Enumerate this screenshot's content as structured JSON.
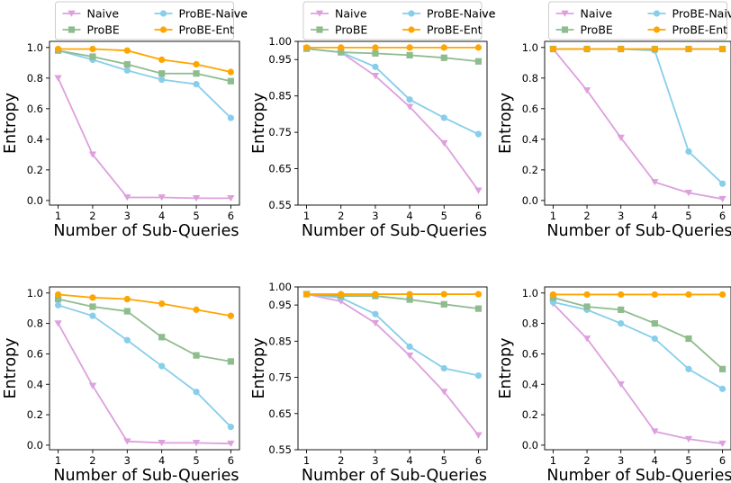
{
  "colors": {
    "Naive": "#DDA0DD",
    "ProBE-Naive": "#87CEEB",
    "ProBE": "#8FBC8F",
    "ProBE-Ent": "#FFA500"
  },
  "chart_data": [
    {
      "type": "line",
      "xlabel": "Number of Sub-Queries",
      "ylabel": "Entropy",
      "x": [
        1,
        2,
        3,
        4,
        5,
        6
      ],
      "xlim": [
        0.75,
        6.25
      ],
      "ylim": [
        -0.03,
        1.04
      ],
      "yticks": [
        0.0,
        0.2,
        0.4,
        0.6,
        0.8,
        1.0
      ],
      "ytick_labels": [
        "0.0",
        "0.2",
        "0.4",
        "0.6",
        "0.8",
        "1.0"
      ],
      "legend": "top-center",
      "series": [
        {
          "name": "Naive",
          "marker": "triangle-down",
          "values": [
            0.8,
            0.3,
            0.02,
            0.02,
            0.015,
            0.015
          ]
        },
        {
          "name": "ProBE-Naive",
          "marker": "circle",
          "values": [
            0.98,
            0.92,
            0.85,
            0.79,
            0.76,
            0.54
          ]
        },
        {
          "name": "ProBE",
          "marker": "square",
          "values": [
            0.98,
            0.94,
            0.89,
            0.83,
            0.83,
            0.78
          ]
        },
        {
          "name": "ProBE-Ent",
          "marker": "circle",
          "values": [
            0.99,
            0.99,
            0.98,
            0.92,
            0.89,
            0.84
          ]
        }
      ]
    },
    {
      "type": "line",
      "xlabel": "Number of Sub-Queries",
      "ylabel": "Entropy",
      "x": [
        1,
        2,
        3,
        4,
        5,
        6
      ],
      "xlim": [
        0.75,
        6.25
      ],
      "ylim": [
        0.55,
        1.0
      ],
      "yticks": [
        0.55,
        0.65,
        0.75,
        0.85,
        0.95,
        1.0
      ],
      "ytick_labels": [
        "0.55",
        "0.65",
        "0.75",
        "0.85",
        "0.95",
        "1.00"
      ],
      "legend": "top-center",
      "series": [
        {
          "name": "Naive",
          "marker": "triangle-down",
          "values": [
            0.98,
            0.97,
            0.905,
            0.82,
            0.72,
            0.59
          ]
        },
        {
          "name": "ProBE-Naive",
          "marker": "circle",
          "values": [
            0.98,
            0.97,
            0.93,
            0.84,
            0.79,
            0.745
          ]
        },
        {
          "name": "ProBE",
          "marker": "square",
          "values": [
            0.98,
            0.97,
            0.967,
            0.962,
            0.955,
            0.945
          ]
        },
        {
          "name": "ProBE-Ent",
          "marker": "circle",
          "values": [
            0.983,
            0.983,
            0.983,
            0.983,
            0.983,
            0.983
          ]
        }
      ]
    },
    {
      "type": "line",
      "xlabel": "Number of Sub-Queries",
      "ylabel": "Entropy",
      "x": [
        1,
        2,
        3,
        4,
        5,
        6
      ],
      "xlim": [
        0.75,
        6.25
      ],
      "ylim": [
        -0.03,
        1.04
      ],
      "yticks": [
        0.0,
        0.2,
        0.4,
        0.6,
        0.8,
        1.0
      ],
      "ytick_labels": [
        "0.0",
        "0.2",
        "0.4",
        "0.6",
        "0.8",
        "1.0"
      ],
      "legend": "top-center",
      "series": [
        {
          "name": "Naive",
          "marker": "triangle-down",
          "values": [
            0.99,
            0.72,
            0.41,
            0.12,
            0.05,
            0.01
          ]
        },
        {
          "name": "ProBE-Naive",
          "marker": "circle",
          "values": [
            0.99,
            0.99,
            0.99,
            0.98,
            0.32,
            0.11
          ]
        },
        {
          "name": "ProBE",
          "marker": "square",
          "values": [
            0.99,
            0.99,
            0.99,
            0.99,
            0.99,
            0.99
          ]
        },
        {
          "name": "ProBE-Ent",
          "marker": "circle",
          "values": [
            0.99,
            0.99,
            0.99,
            0.99,
            0.99,
            0.99
          ]
        }
      ]
    },
    {
      "type": "line",
      "xlabel": "Number of Sub-Queries",
      "ylabel": "Entropy",
      "x": [
        1,
        2,
        3,
        4,
        5,
        6
      ],
      "xlim": [
        0.75,
        6.25
      ],
      "ylim": [
        -0.03,
        1.04
      ],
      "yticks": [
        0.0,
        0.2,
        0.4,
        0.6,
        0.8,
        1.0
      ],
      "ytick_labels": [
        "0.0",
        "0.2",
        "0.4",
        "0.6",
        "0.8",
        "1.0"
      ],
      "legend": "top-center",
      "series": [
        {
          "name": "Naive",
          "marker": "triangle-down",
          "values": [
            0.8,
            0.39,
            0.025,
            0.015,
            0.015,
            0.01
          ]
        },
        {
          "name": "ProBE-Naive",
          "marker": "circle",
          "values": [
            0.92,
            0.85,
            0.69,
            0.52,
            0.35,
            0.12
          ]
        },
        {
          "name": "ProBE",
          "marker": "square",
          "values": [
            0.96,
            0.91,
            0.88,
            0.71,
            0.59,
            0.55
          ]
        },
        {
          "name": "ProBE-Ent",
          "marker": "circle",
          "values": [
            0.99,
            0.97,
            0.96,
            0.93,
            0.89,
            0.85
          ]
        }
      ]
    },
    {
      "type": "line",
      "xlabel": "Number of Sub-Queries",
      "ylabel": "Entropy",
      "x": [
        1,
        2,
        3,
        4,
        5,
        6
      ],
      "xlim": [
        0.75,
        6.25
      ],
      "ylim": [
        0.55,
        1.0
      ],
      "yticks": [
        0.55,
        0.65,
        0.75,
        0.85,
        0.95,
        1.0
      ],
      "ytick_labels": [
        "0.55",
        "0.65",
        "0.75",
        "0.85",
        "0.95",
        "1.00"
      ],
      "legend": "top-center",
      "series": [
        {
          "name": "Naive",
          "marker": "triangle-down",
          "values": [
            0.98,
            0.96,
            0.9,
            0.81,
            0.71,
            0.59
          ]
        },
        {
          "name": "ProBE-Naive",
          "marker": "circle",
          "values": [
            0.98,
            0.97,
            0.925,
            0.835,
            0.775,
            0.755
          ]
        },
        {
          "name": "ProBE",
          "marker": "square",
          "values": [
            0.98,
            0.975,
            0.975,
            0.965,
            0.952,
            0.94
          ]
        },
        {
          "name": "ProBE-Ent",
          "marker": "circle",
          "values": [
            0.98,
            0.98,
            0.98,
            0.98,
            0.98,
            0.98
          ]
        }
      ]
    },
    {
      "type": "line",
      "xlabel": "Number of Sub-Queries",
      "ylabel": "Entropy",
      "x": [
        1,
        2,
        3,
        4,
        5,
        6
      ],
      "xlim": [
        0.75,
        6.25
      ],
      "ylim": [
        -0.03,
        1.04
      ],
      "yticks": [
        0.0,
        0.2,
        0.4,
        0.6,
        0.8,
        1.0
      ],
      "ytick_labels": [
        "0.0",
        "0.2",
        "0.4",
        "0.6",
        "0.8",
        "1.0"
      ],
      "legend": "top-center",
      "series": [
        {
          "name": "Naive",
          "marker": "triangle-down",
          "values": [
            0.93,
            0.7,
            0.4,
            0.09,
            0.04,
            0.01
          ]
        },
        {
          "name": "ProBE-Naive",
          "marker": "circle",
          "values": [
            0.94,
            0.89,
            0.8,
            0.7,
            0.5,
            0.37
          ]
        },
        {
          "name": "ProBE",
          "marker": "square",
          "values": [
            0.97,
            0.91,
            0.89,
            0.8,
            0.7,
            0.5
          ]
        },
        {
          "name": "ProBE-Ent",
          "marker": "circle",
          "values": [
            0.99,
            0.99,
            0.99,
            0.99,
            0.99,
            0.99
          ]
        }
      ]
    }
  ]
}
